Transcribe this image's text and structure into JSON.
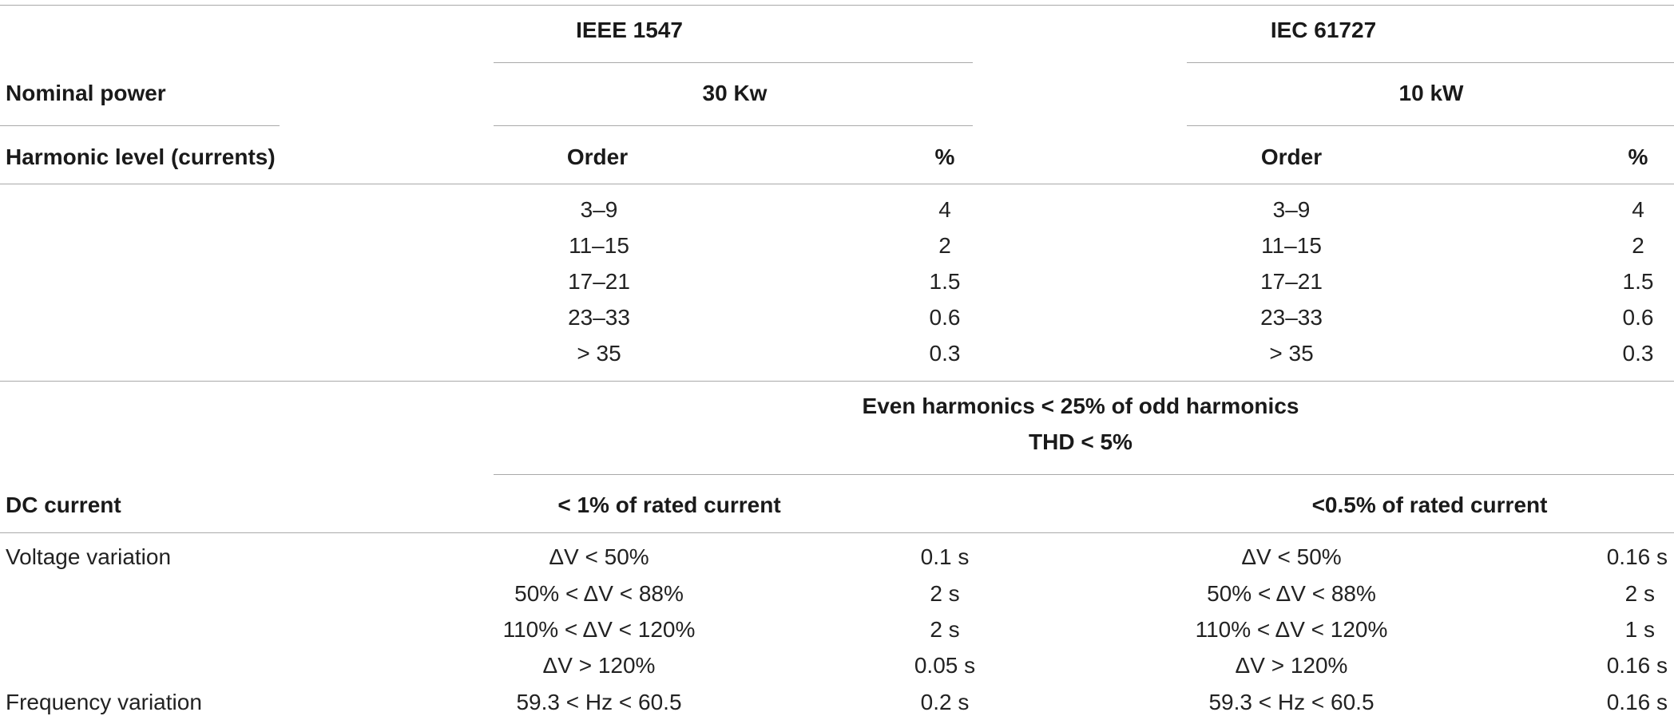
{
  "header": {
    "standard_1": "IEEE 1547",
    "standard_2": "IEC 61727",
    "nominal_power_label": "Nominal power",
    "power_1": "30 Kw",
    "power_2": "10 kW",
    "harmonic_label": "Harmonic level (currents)",
    "order_label": "Order",
    "percent_label": "%"
  },
  "harmonics": [
    {
      "order": "3–9",
      "pct": "4"
    },
    {
      "order": "11–15",
      "pct": "2"
    },
    {
      "order": "17–21",
      "pct": "1.5"
    },
    {
      "order": "23–33",
      "pct": "0.6"
    },
    {
      "order": "> 35",
      "pct": "0.3"
    }
  ],
  "notes": {
    "even_harmonics": "Even harmonics < 25% of odd harmonics",
    "thd": "THD < 5%"
  },
  "dc": {
    "label": "DC current",
    "ieee": "< 1% of rated current",
    "iec": "<0.5% of rated current"
  },
  "voltage": {
    "label": "Voltage variation",
    "rows": [
      {
        "cond": "ΔV < 50%",
        "ieee_time": "0.1 s",
        "iec_time": "0.16 s"
      },
      {
        "cond": "50% < ΔV < 88%",
        "ieee_time": "2 s",
        "iec_time": "2 s"
      },
      {
        "cond": "110% < ΔV < 120%",
        "ieee_time": "2 s",
        "iec_time": "1 s"
      },
      {
        "cond": "ΔV > 120%",
        "ieee_time": "0.05 s",
        "iec_time": "0.16 s"
      }
    ]
  },
  "frequency": {
    "label": "Frequency variation",
    "cond": "59.3 < Hz < 60.5",
    "ieee_time": "0.2 s",
    "iec_time": "0.16 s"
  }
}
